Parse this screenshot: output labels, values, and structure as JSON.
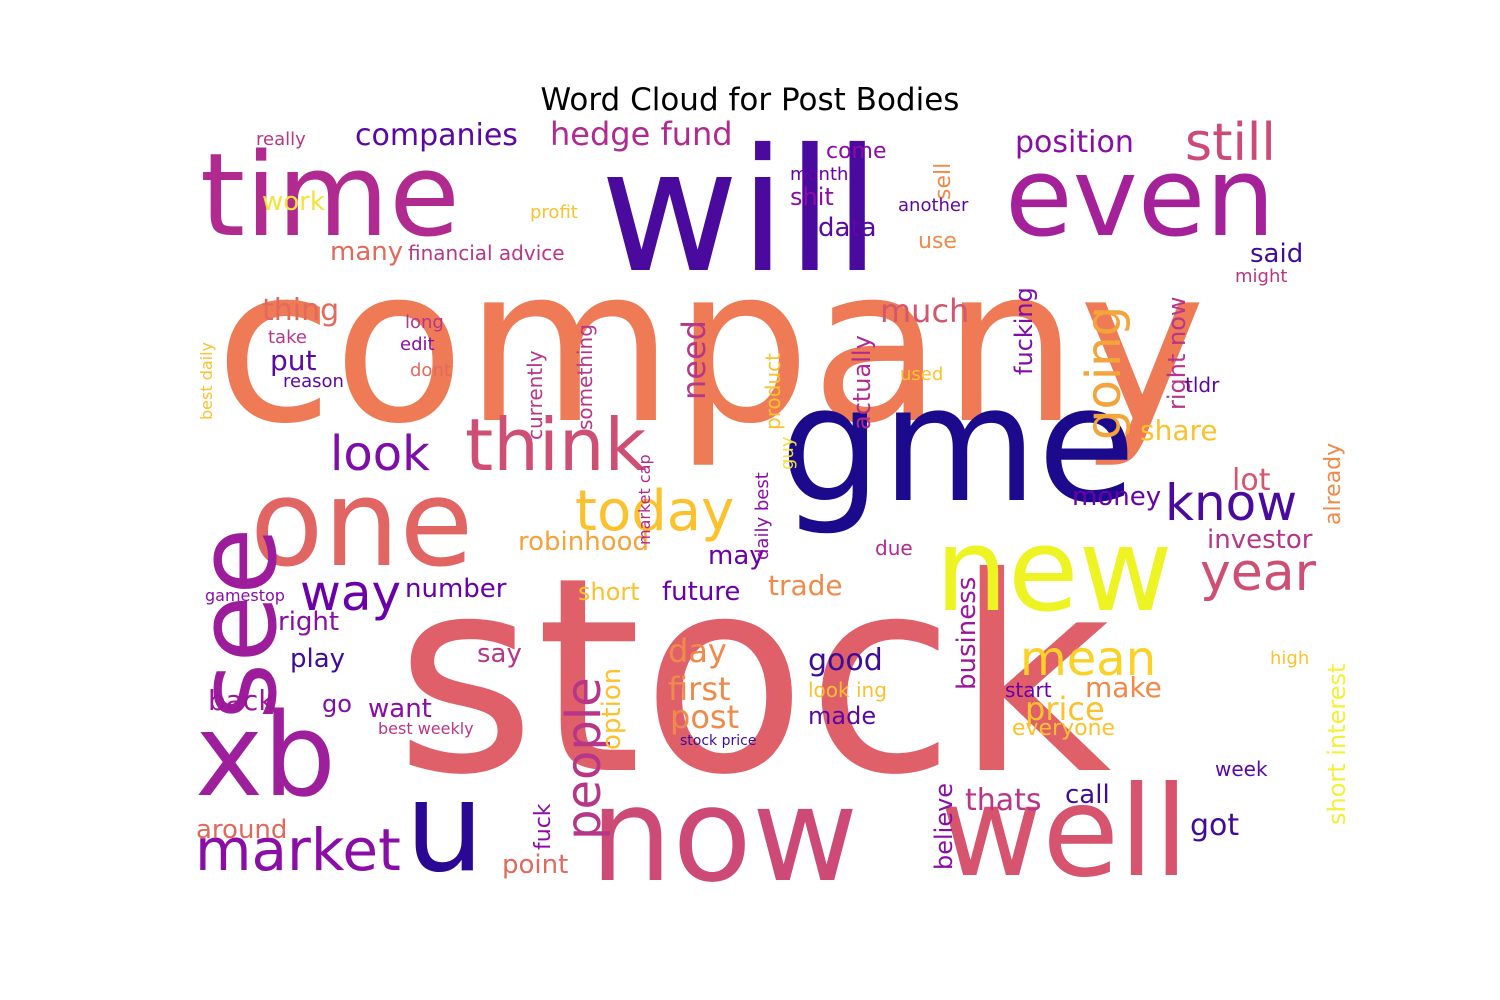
{
  "chart_data": {
    "type": "wordcloud",
    "title": "Word Cloud for Post Bodies",
    "colormap": [
      "#0d0887",
      "#41049d",
      "#6a00a8",
      "#8f0da4",
      "#b12a90",
      "#cc4778",
      "#e16462",
      "#f2844b",
      "#fca636",
      "#fcce25",
      "#f0f921"
    ],
    "words": [
      {
        "text": "stock",
        "weight": 100,
        "color": "#e0606a"
      },
      {
        "text": "company",
        "weight": 88,
        "color": "#ee7b55"
      },
      {
        "text": "will",
        "weight": 64,
        "color": "#4a0a9e"
      },
      {
        "text": "gme",
        "weight": 56,
        "color": "#1c0a8c"
      },
      {
        "text": "time",
        "weight": 52,
        "color": "#b02a8f"
      },
      {
        "text": "even",
        "weight": 50,
        "color": "#a4219a"
      },
      {
        "text": "now",
        "weight": 50,
        "color": "#cd4a76"
      },
      {
        "text": "well",
        "weight": 46,
        "color": "#d6546e"
      },
      {
        "text": "one",
        "weight": 44,
        "color": "#e16663"
      },
      {
        "text": "new",
        "weight": 44,
        "color": "#eef423"
      },
      {
        "text": "see",
        "weight": 42,
        "color": "#9c1c9c"
      },
      {
        "text": "xb",
        "weight": 42,
        "color": "#9d1f9b"
      },
      {
        "text": "u",
        "weight": 40,
        "color": "#2a0893"
      },
      {
        "text": "think",
        "weight": 28,
        "color": "#cf4e74"
      },
      {
        "text": "market",
        "weight": 24,
        "color": "#8a0ea6"
      },
      {
        "text": "going",
        "weight": 22,
        "color": "#f3a43a"
      },
      {
        "text": "people",
        "weight": 22,
        "color": "#b63688"
      },
      {
        "text": "year",
        "weight": 22,
        "color": "#cf4e74"
      },
      {
        "text": "today",
        "weight": 22,
        "color": "#fbc22d"
      },
      {
        "text": "still",
        "weight": 22,
        "color": "#cd4a76"
      },
      {
        "text": "look",
        "weight": 21,
        "color": "#7d0ea6"
      },
      {
        "text": "know",
        "weight": 21,
        "color": "#4a0a9e"
      },
      {
        "text": "way",
        "weight": 21,
        "color": "#6a00a8"
      },
      {
        "text": "mean",
        "weight": 20,
        "color": "#fbd125"
      },
      {
        "text": "hedge fund",
        "weight": 16,
        "color": "#b02a8f"
      },
      {
        "text": "companies",
        "weight": 15,
        "color": "#5a07a3"
      },
      {
        "text": "position",
        "weight": 15,
        "color": "#8a0ea6"
      },
      {
        "text": "price",
        "weight": 15,
        "color": "#fbc22d"
      },
      {
        "text": "much",
        "weight": 15,
        "color": "#d4566e"
      },
      {
        "text": "thats",
        "weight": 15,
        "color": "#b63688"
      },
      {
        "text": "got",
        "weight": 15,
        "color": "#3e0b9b"
      },
      {
        "text": "need",
        "weight": 15,
        "color": "#b63688"
      },
      {
        "text": "post",
        "weight": 15,
        "color": "#f08a4a"
      },
      {
        "text": "good",
        "weight": 15,
        "color": "#3e0b9b"
      },
      {
        "text": "first",
        "weight": 15,
        "color": "#f08a4a"
      },
      {
        "text": "day",
        "weight": 15,
        "color": "#f08a4a"
      },
      {
        "text": "lot",
        "weight": 15,
        "color": "#d4566e"
      },
      {
        "text": "share",
        "weight": 15,
        "color": "#fbc22d"
      },
      {
        "text": "money",
        "weight": 14,
        "color": "#6a00a8"
      },
      {
        "text": "investor",
        "weight": 14,
        "color": "#b63688"
      },
      {
        "text": "robinhood",
        "weight": 14,
        "color": "#f3a43a"
      },
      {
        "text": "make",
        "weight": 14,
        "color": "#f08a4a"
      },
      {
        "text": "back",
        "weight": 14,
        "color": "#9a179b"
      },
      {
        "text": "put",
        "weight": 14,
        "color": "#5a07a3"
      },
      {
        "text": "thing",
        "weight": 14,
        "color": "#e16a5c"
      },
      {
        "text": "trade",
        "weight": 14,
        "color": "#f08a4a"
      },
      {
        "text": "number",
        "weight": 14,
        "color": "#6a00a8"
      },
      {
        "text": "future",
        "weight": 13,
        "color": "#6a00a8"
      },
      {
        "text": "point",
        "weight": 13,
        "color": "#e16a5c"
      },
      {
        "text": "around",
        "weight": 13,
        "color": "#e16a5c"
      },
      {
        "text": "call",
        "weight": 13,
        "color": "#3e0b9b"
      },
      {
        "text": "business",
        "weight": 13,
        "color": "#9a179b"
      },
      {
        "text": "option",
        "weight": 13,
        "color": "#fbc22d"
      },
      {
        "text": "want",
        "weight": 13,
        "color": "#8a0ea6"
      },
      {
        "text": "play",
        "weight": 13,
        "color": "#3e0b9b"
      },
      {
        "text": "may",
        "weight": 13,
        "color": "#6a00a8"
      },
      {
        "text": "right",
        "weight": 13,
        "color": "#8a0ea6"
      },
      {
        "text": "short interest",
        "weight": 12,
        "color": "#f3f03a"
      },
      {
        "text": "fucking",
        "weight": 12,
        "color": "#7d0ea6"
      },
      {
        "text": "right now",
        "weight": 12,
        "color": "#b63688"
      },
      {
        "text": "actually",
        "weight": 12,
        "color": "#b02a8f"
      },
      {
        "text": "said",
        "weight": 12,
        "color": "#3e0b9b"
      },
      {
        "text": "believe",
        "weight": 12,
        "color": "#8a0ea6"
      },
      {
        "text": "say",
        "weight": 12,
        "color": "#b63688"
      },
      {
        "text": "short",
        "weight": 12,
        "color": "#fbc22d"
      },
      {
        "text": "work",
        "weight": 12,
        "color": "#f3e33a"
      },
      {
        "text": "many",
        "weight": 12,
        "color": "#e16a5c"
      },
      {
        "text": "data",
        "weight": 12,
        "color": "#5a07a3"
      },
      {
        "text": "shit",
        "weight": 12,
        "color": "#8a0ea6"
      },
      {
        "text": "everyone",
        "weight": 11,
        "color": "#fbc22d"
      },
      {
        "text": "go",
        "weight": 11,
        "color": "#7d0ea6"
      },
      {
        "text": "made",
        "weight": 11,
        "color": "#5a07a3"
      },
      {
        "text": "fuck",
        "weight": 11,
        "color": "#8a0ea6"
      },
      {
        "text": "already",
        "weight": 11,
        "color": "#f08a4a"
      },
      {
        "text": "sell",
        "weight": 11,
        "color": "#f08a4a"
      },
      {
        "text": "come",
        "weight": 11,
        "color": "#8a0ea6"
      },
      {
        "text": "use",
        "weight": 11,
        "color": "#f08a4a"
      },
      {
        "text": "week",
        "weight": 10,
        "color": "#5a07a3"
      },
      {
        "text": "something",
        "weight": 10,
        "color": "#b63688"
      },
      {
        "text": "product",
        "weight": 10,
        "color": "#fbc22d"
      },
      {
        "text": "currently",
        "weight": 10,
        "color": "#b63688"
      },
      {
        "text": "look ing",
        "weight": 10,
        "color": "#fbc22d"
      },
      {
        "text": "start",
        "weight": 10,
        "color": "#6a00a8"
      },
      {
        "text": "due",
        "weight": 10,
        "color": "#b02a8f"
      },
      {
        "text": "financial advice",
        "weight": 10,
        "color": "#b63688"
      },
      {
        "text": "daily best",
        "weight": 10,
        "color": "#8a0ea6"
      },
      {
        "text": "month",
        "weight": 10,
        "color": "#6a00a8"
      },
      {
        "text": "another",
        "weight": 10,
        "color": "#5a07a3"
      },
      {
        "text": "really",
        "weight": 10,
        "color": "#b63688"
      },
      {
        "text": "tldr",
        "weight": 10,
        "color": "#5a07a3"
      },
      {
        "text": "might",
        "weight": 10,
        "color": "#b63688"
      },
      {
        "text": "long",
        "weight": 10,
        "color": "#b63688"
      },
      {
        "text": "profit",
        "weight": 10,
        "color": "#fbc22d"
      },
      {
        "text": "reason",
        "weight": 9,
        "color": "#5a07a3"
      },
      {
        "text": "take",
        "weight": 9,
        "color": "#b63688"
      },
      {
        "text": "used",
        "weight": 9,
        "color": "#fbc22d"
      },
      {
        "text": "dont",
        "weight": 9,
        "color": "#e16a5c"
      },
      {
        "text": "edit",
        "weight": 9,
        "color": "#8a0ea6"
      },
      {
        "text": "guy",
        "weight": 9,
        "color": "#f3e33a"
      },
      {
        "text": "high",
        "weight": 9,
        "color": "#fbc22d"
      },
      {
        "text": "best weekly",
        "weight": 9,
        "color": "#b63688"
      },
      {
        "text": "stock price",
        "weight": 8,
        "color": "#3e0b9b"
      },
      {
        "text": "gamestop",
        "weight": 8,
        "color": "#8a0ea6"
      },
      {
        "text": "market cap",
        "weight": 8,
        "color": "#b02a8f"
      },
      {
        "text": "best daily",
        "weight": 8,
        "color": "#fbc22d"
      }
    ]
  }
}
